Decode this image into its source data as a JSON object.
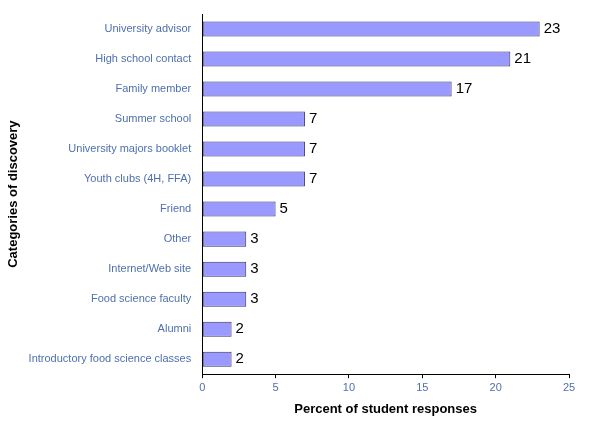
{
  "chart_data": {
    "type": "bar",
    "orientation": "horizontal",
    "x_label": "Percent of student responses",
    "y_label": "Categories of discovery",
    "categories": [
      "University advisor",
      "High school contact",
      "Family member",
      "Summer school",
      "University majors booklet",
      "Youth clubs (4H, FFA)",
      "Friend",
      "Other",
      "Internet/Web site",
      "Food science faculty",
      "Alumni",
      "Introductory food science classes"
    ],
    "values": [
      23,
      21,
      17,
      7,
      7,
      7,
      5,
      3,
      3,
      3,
      2,
      2
    ],
    "color": "#9999ff",
    "xlim": [
      0,
      25
    ],
    "xticks": [
      0,
      5,
      10,
      15,
      20,
      25
    ],
    "grid": false,
    "data_labels": true
  }
}
